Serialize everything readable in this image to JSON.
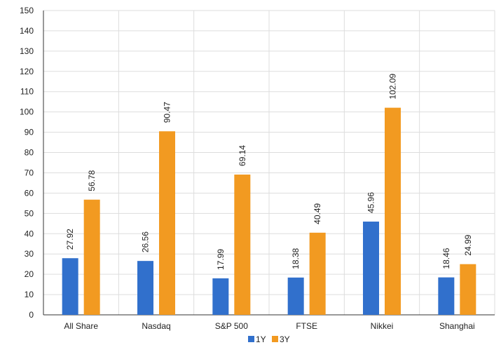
{
  "chart_data": {
    "type": "bar",
    "categories": [
      "All Share",
      "Nasdaq",
      "S&P 500",
      "FTSE",
      "Nikkei",
      "Shanghai"
    ],
    "series": [
      {
        "name": "1Y",
        "values": [
          27.92,
          26.56,
          17.99,
          18.38,
          45.96,
          18.46
        ],
        "labels": [
          "27.92",
          "26.56",
          "17.99",
          "18.38",
          "45.96",
          "18.46"
        ],
        "color": "#3170cc"
      },
      {
        "name": "3Y",
        "values": [
          56.78,
          90.47,
          69.14,
          40.49,
          102.09,
          24.99
        ],
        "labels": [
          "56.78",
          "90.47",
          "69.14",
          "40.49",
          "102.09",
          "24.99"
        ],
        "color": "#f29a21"
      }
    ],
    "ylim": [
      0,
      150
    ],
    "yticks": [
      0,
      10,
      20,
      30,
      40,
      50,
      60,
      70,
      80,
      90,
      100,
      110,
      120,
      130,
      140,
      150
    ],
    "xlabel": "",
    "ylabel": "",
    "title": "",
    "grid": true,
    "legend": "bottom-center"
  }
}
